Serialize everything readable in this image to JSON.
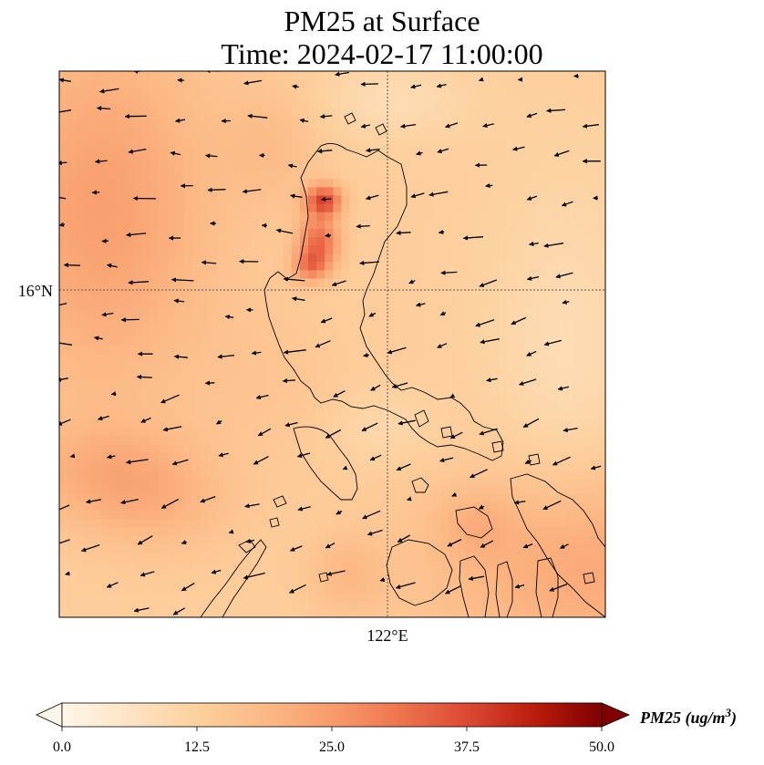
{
  "title": {
    "line1": "PM25 at Surface",
    "line2": "Time: 2024-02-17 11:00:00"
  },
  "axes": {
    "lat_label": "16°N",
    "lon_label": "122°E"
  },
  "colorbar": {
    "label_main": "PM25 (ug/m",
    "label_sup": "3",
    "label_end": ")",
    "ticks": [
      "0.0",
      "12.5",
      "25.0",
      "37.5",
      "50.0"
    ],
    "vmin": 0,
    "vmax": 50,
    "colormap": [
      "#fff5eb",
      "#fee6ce",
      "#fdd0a2",
      "#fdae6b",
      "#fd8d3c",
      "#f16913",
      "#d94801",
      "#a63603",
      "#7f2704"
    ],
    "cmap_name": "OrRd"
  },
  "chart_data": {
    "type": "heatmap",
    "title": "PM25 at Surface",
    "subtitle": "Time: 2024-02-17 11:00:00",
    "variable": "PM25",
    "units": "ug/m3",
    "xlabel": "122°E",
    "ylabel": "16°N",
    "value_range": [
      0,
      50
    ],
    "overlays": [
      "coastlines",
      "wind vectors",
      "graticule"
    ]
  }
}
